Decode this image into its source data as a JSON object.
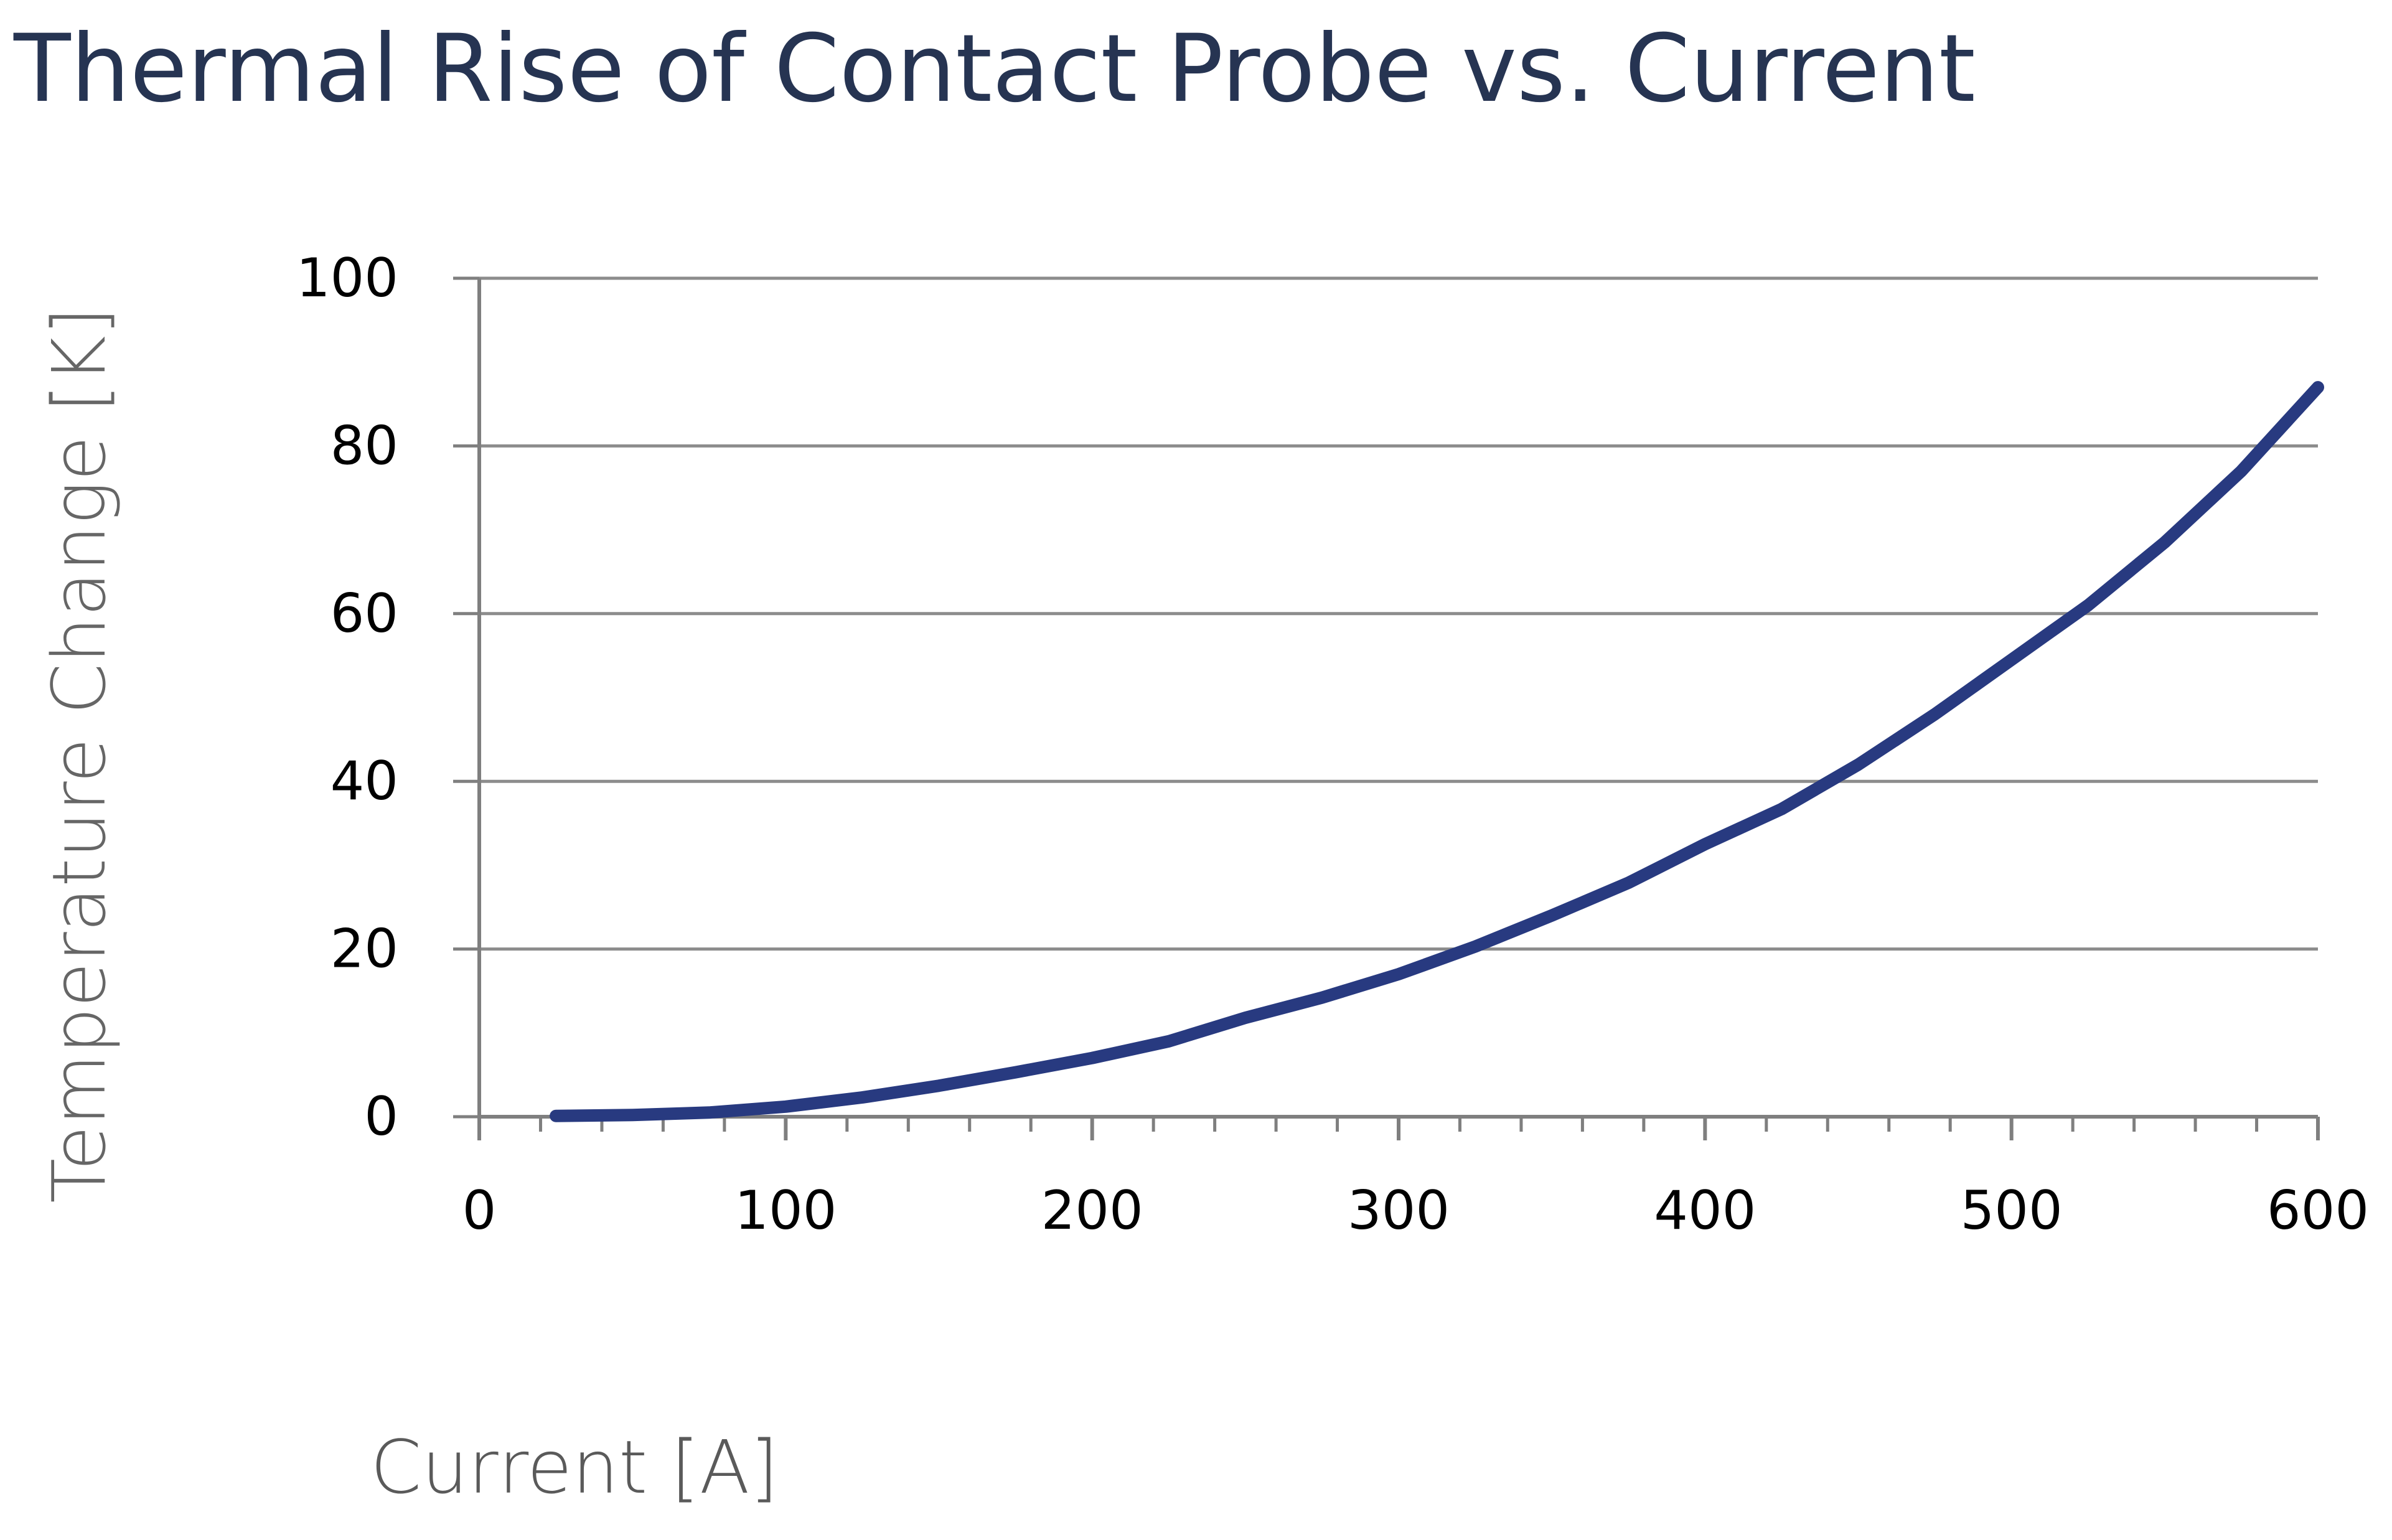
{
  "colors": {
    "title": "#263452",
    "series": "#283A80",
    "grid": "#8c8c8c",
    "axis": "#7f7f7f",
    "axis_title": "#666666",
    "tick_text": "#000000"
  },
  "chart_data": {
    "type": "line",
    "title": "Thermal Rise of Contact Probe vs. Current",
    "xlabel": "Current [A]",
    "ylabel": "Temperature Change [K]",
    "xlim": [
      0,
      600
    ],
    "ylim": [
      0,
      100
    ],
    "x_ticks": [
      0,
      100,
      200,
      300,
      400,
      500,
      600
    ],
    "y_ticks": [
      0,
      20,
      40,
      60,
      80,
      100
    ],
    "x_minor_step": 20,
    "grid": "horizontal",
    "legend": "none",
    "series": [
      {
        "x": [
          25,
          50,
          75,
          100,
          125,
          150,
          175,
          200,
          225,
          250,
          275,
          300,
          325,
          350,
          375,
          400,
          425,
          450,
          475,
          500,
          525,
          550,
          575,
          600
        ],
        "values": [
          0.1,
          0.2,
          0.5,
          1.2,
          2.3,
          3.7,
          5.3,
          7.0,
          9.0,
          11.8,
          14.2,
          17.0,
          20.3,
          24.0,
          27.9,
          32.5,
          36.7,
          42.0,
          48.0,
          54.5,
          61.0,
          68.5,
          77.0,
          87.0
        ]
      }
    ]
  }
}
